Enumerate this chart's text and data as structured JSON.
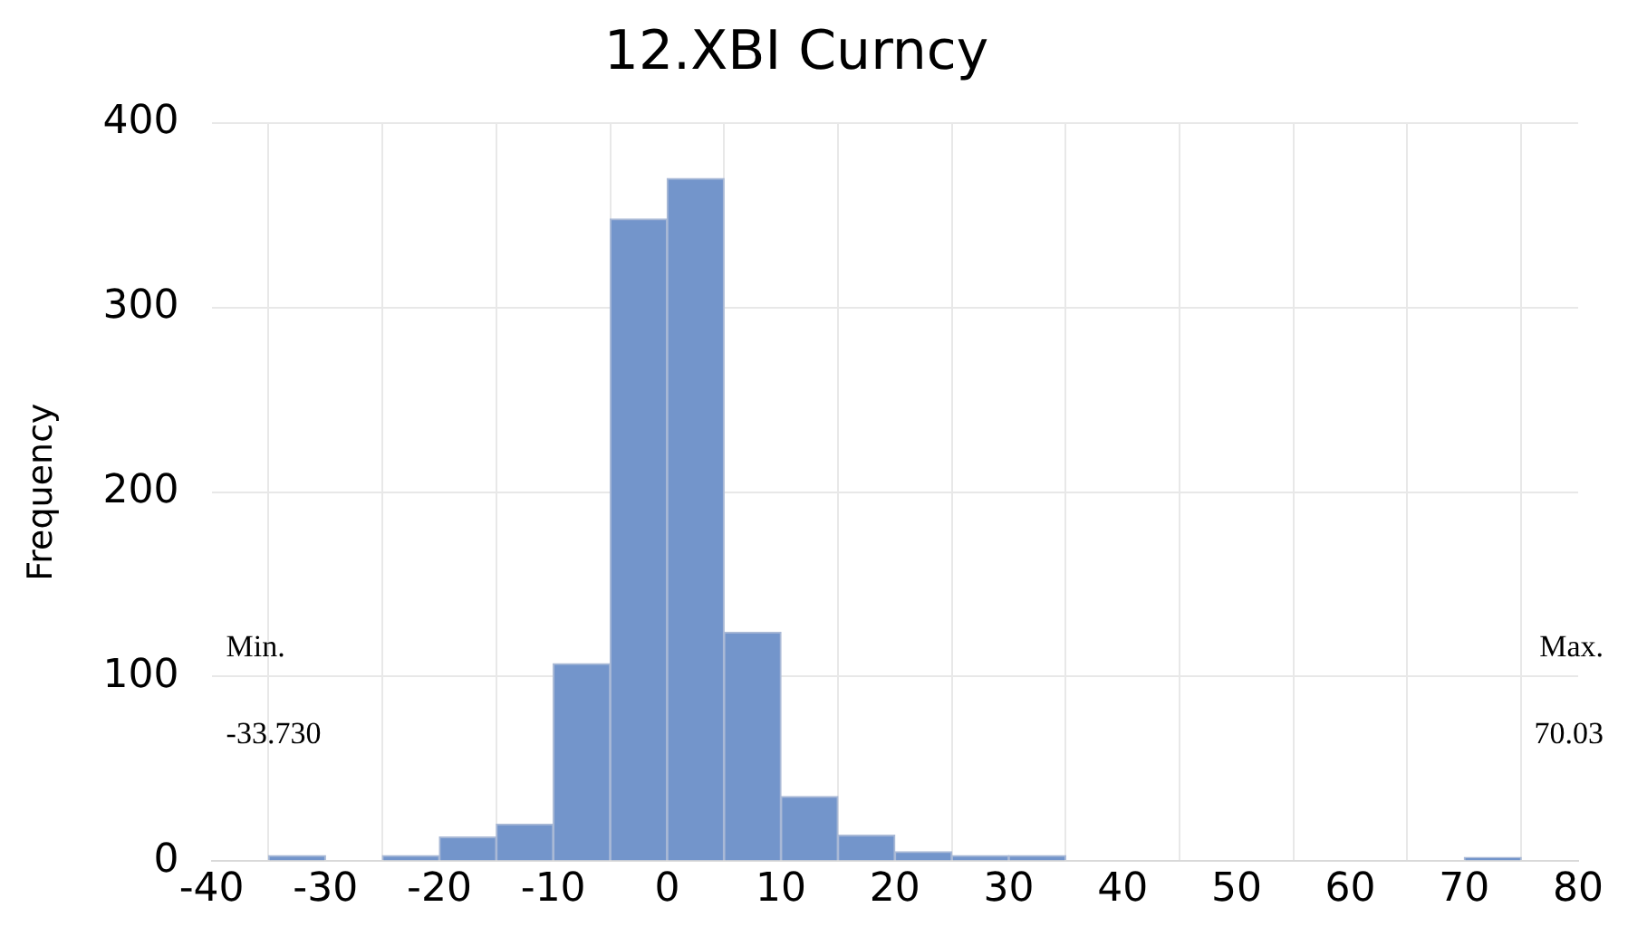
{
  "chart_data": {
    "type": "histogram",
    "title": "12.XBI Curncy",
    "ylabel": "Frequency",
    "bins": [
      -35,
      -30,
      -25,
      -20,
      -15,
      -10,
      -5,
      0,
      5,
      10,
      15,
      20,
      25,
      30,
      35,
      40,
      45,
      50,
      55,
      60,
      65,
      70,
      75
    ],
    "values": [
      3,
      0,
      3,
      13,
      20,
      107,
      348,
      370,
      124,
      35,
      14,
      5,
      3,
      3,
      0,
      0,
      0,
      0,
      0,
      0,
      0,
      2
    ],
    "color": "#7395cb",
    "xlim": [
      -40,
      80
    ],
    "xticks": [
      -40,
      -30,
      -20,
      -10,
      0,
      10,
      20,
      30,
      40,
      50,
      60,
      70,
      80
    ],
    "ylim": [
      0,
      400
    ],
    "yticks": [
      0,
      100,
      200,
      300,
      400
    ],
    "grid": true,
    "annotations": [
      "Min.",
      "-33.730",
      "Max.",
      "70.03"
    ]
  }
}
